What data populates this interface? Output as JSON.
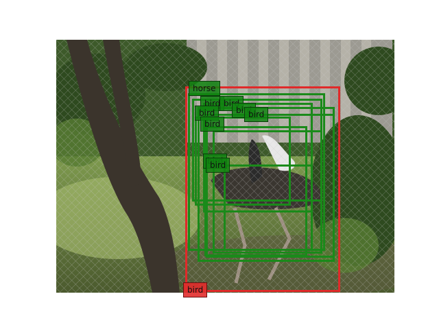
{
  "detections": [
    {
      "label": "bird",
      "color": "#e02a2a"
    },
    {
      "label": "horse",
      "color": "#1a8a1a"
    },
    {
      "label": "bird",
      "color": "#1a8a1a"
    },
    {
      "label": "bird",
      "color": "#1a8a1a"
    },
    {
      "label": "bird",
      "color": "#1a8a1a"
    },
    {
      "label": "bird",
      "color": "#1a8a1a"
    },
    {
      "label": "bird",
      "color": "#1a8a1a"
    },
    {
      "label": "bird",
      "color": "#1a8a1a"
    },
    {
      "label": "bird",
      "color": "#1a8a1a"
    },
    {
      "label": "bird",
      "color": "#1a8a1a"
    }
  ],
  "colors": {
    "positive": "#1a8a1a",
    "negative": "#e02a2a",
    "background": "#ffffff"
  }
}
